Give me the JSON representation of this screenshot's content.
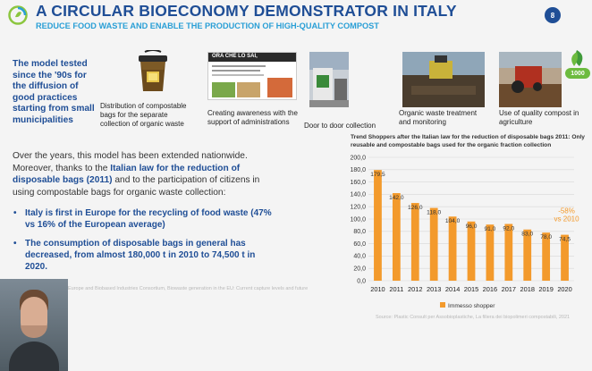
{
  "header": {
    "title": "A CIRCULAR BIOECONOMY DEMONSTRATOR IN ITALY",
    "subtitle": "REDUCE FOOD WASTE AND ENABLE THE PRODUCTION OF HIGH-QUALITY COMPOST",
    "page_number": "8"
  },
  "intro": {
    "text": "The model tested since the '90s for the diffusion of good practices starting from small municipalities"
  },
  "steps": [
    {
      "caption": "Distribution of compostable bags for the separate collection of organic waste"
    },
    {
      "caption": "Creating awareness with the support of administrations",
      "poster_title": "ORA CHE LO SAI,"
    },
    {
      "caption": "Door to door collection"
    },
    {
      "caption": "Organic waste treatment and monitoring"
    },
    {
      "caption": "Use of quality compost in agriculture",
      "badge_text": "1000"
    }
  ],
  "body": {
    "para_before": "Over the years, this model has been extended nationwide. Moreover, thanks to the ",
    "para_highlight": "Italian law for the reduction of disposable bags (2011)",
    "para_after": " and to the participation of citizens in using compostable bags for organic waste collection:",
    "bullets": [
      "Italy is first in Europe for the recycling of food waste (47% vs 16% of the European average)",
      "The consumption of disposable bags in general has decreased, from almost 180,000 t in 2010 to 74,500 t in 2020."
    ]
  },
  "footnotes": {
    "left": "Europe and Biobased Industries Consortium, Biowaste generation in the EU: Current capture levels and future",
    "right": "Source: Plastic Consult per Assobioplastiche, La filiera dei biopolimeri compostabili, 2021"
  },
  "chart_data": {
    "type": "bar",
    "title": "Trend Shoppers after the Italian law for the reduction of disposable bags 2011: Only reusable and compostable bags used for the organic fraction collection",
    "categories": [
      "2010",
      "2011",
      "2012",
      "2013",
      "2014",
      "2015",
      "2016",
      "2017",
      "2018",
      "2019",
      "2020"
    ],
    "values": [
      179.5,
      142.0,
      126.0,
      118.0,
      104.0,
      96.0,
      91.0,
      92.0,
      83.0,
      78.0,
      74.5
    ],
    "value_labels": [
      "179,5",
      "142,0",
      "126,0",
      "118,0",
      "104,0",
      "96,0",
      "91,0",
      "92,0",
      "83,0",
      "78,0",
      "74,5"
    ],
    "y_ticks": [
      "0,0",
      "20,0",
      "40,0",
      "60,0",
      "80,0",
      "100,0",
      "120,0",
      "140,0",
      "160,0",
      "180,0",
      "200,0"
    ],
    "ylim": [
      0,
      200
    ],
    "legend": "Immesso shopper",
    "legend_position": "bottom",
    "annotation_line1": "-58%",
    "annotation_line2": "vs 2010",
    "bar_color": "#f39a2c",
    "annotation_color": "#f39a2c"
  },
  "colors": {
    "brand_blue": "#1f4e96",
    "accent_cyan": "#2a9fd6"
  }
}
